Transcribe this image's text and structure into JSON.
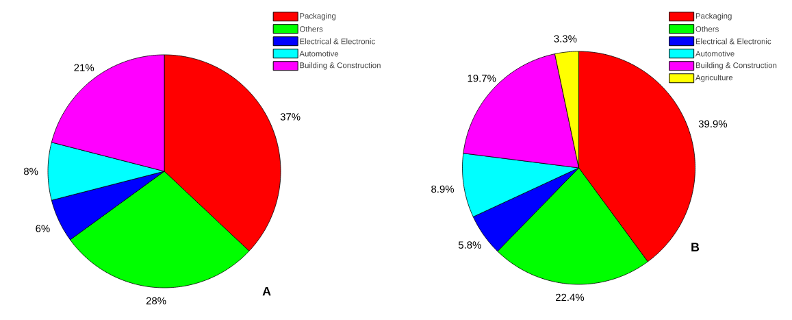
{
  "chart_data": [
    {
      "type": "pie",
      "categories": [
        "Packaging",
        "Others",
        "Electrical & Electronic",
        "Automotive",
        "Building & Construction"
      ],
      "values": [
        37,
        28,
        6,
        8,
        21
      ],
      "colors": [
        "#ff0000",
        "#00ff00",
        "#0000ff",
        "#00ffff",
        "#ff00ff"
      ],
      "value_labels": [
        "37%",
        "28%",
        "6%",
        "8%",
        "21%"
      ],
      "legend": "top right",
      "annotations": [
        "A"
      ]
    },
    {
      "type": "pie",
      "categories": [
        "Packaging",
        "Others",
        "Electrical & Electronic",
        "Automotive",
        "Building & Construction",
        "Agriculture"
      ],
      "values": [
        39.9,
        22.4,
        5.8,
        8.9,
        19.7,
        3.3
      ],
      "colors": [
        "#ff0000",
        "#00ff00",
        "#0000ff",
        "#00ffff",
        "#ff00ff",
        "#ffff00"
      ],
      "value_labels": [
        "39.9%",
        "22.4%",
        "5.8%",
        "8.9%",
        "19.7%",
        "3.3%"
      ],
      "legend": "top right",
      "annotations": [
        "B"
      ]
    }
  ]
}
